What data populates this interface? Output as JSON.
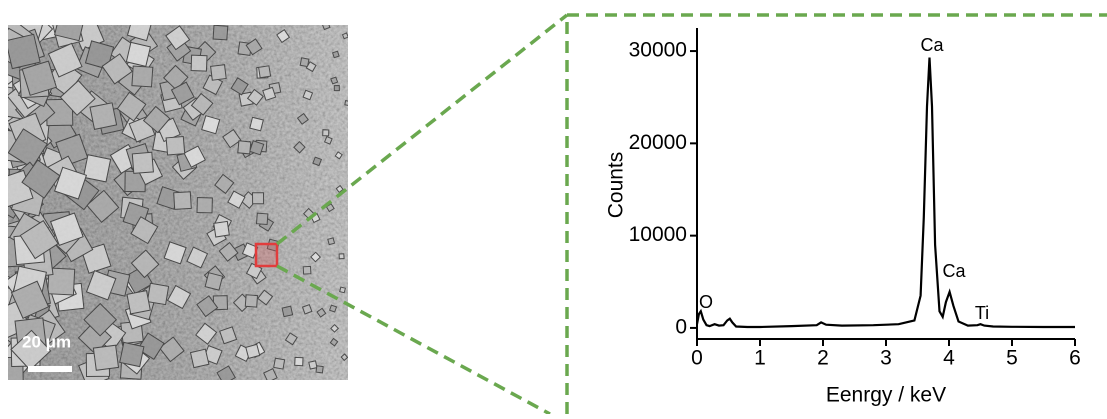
{
  "scale_bar_label": "20 μm",
  "chart_data": {
    "type": "line",
    "x_label": "Eenrgy / keV",
    "y_label": "Counts",
    "x": [
      0,
      0.03,
      0.06,
      0.1,
      0.15,
      0.2,
      0.28,
      0.35,
      0.42,
      0.48,
      0.52,
      0.56,
      0.62,
      0.8,
      1.0,
      1.5,
      1.9,
      1.97,
      2.05,
      2.3,
      2.8,
      3.2,
      3.45,
      3.55,
      3.6,
      3.65,
      3.69,
      3.73,
      3.78,
      3.85,
      3.9,
      3.95,
      4.01,
      4.07,
      4.15,
      4.3,
      4.45,
      4.5,
      4.56,
      4.7,
      5,
      5.5,
      6
    ],
    "series": [
      {
        "color": "#000000",
        "values": [
          400,
          1500,
          1800,
          900,
          300,
          200,
          400,
          250,
          300,
          800,
          1000,
          600,
          150,
          100,
          100,
          200,
          300,
          600,
          350,
          250,
          300,
          400,
          800,
          3500,
          12000,
          24000,
          29300,
          24000,
          9000,
          1800,
          1200,
          2800,
          3900,
          2400,
          700,
          250,
          300,
          400,
          250,
          150,
          120,
          100,
          100
        ]
      }
    ],
    "annotations": [
      "Ca",
      "Ca",
      "O",
      "Ti"
    ],
    "xlim": [
      0,
      6
    ],
    "xticks": [
      0,
      1,
      2,
      3,
      4,
      5,
      6
    ],
    "ylim": [
      -1200,
      32500
    ],
    "yticks": [
      0,
      10000,
      20000,
      30000
    ]
  }
}
